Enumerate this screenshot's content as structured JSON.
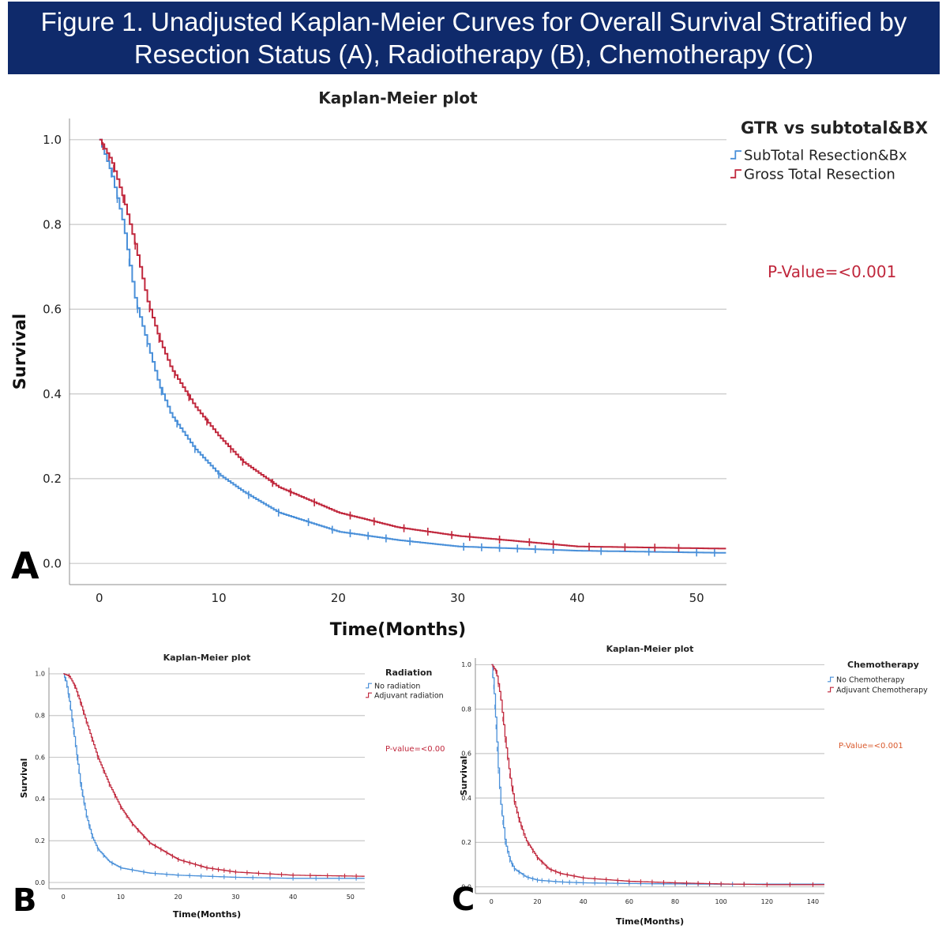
{
  "header": {
    "line1": "Figure 1. Unadjusted Kaplan-Meier Curves for Overall Survival Stratified by",
    "line2": "Resection Status (A), Radiotherapy (B), Chemotherapy (C)",
    "background": "#0f2a6b"
  },
  "chart_data": [
    {
      "panel": "A",
      "type": "line",
      "title": "Kaplan-Meier plot",
      "xlabel": "Time(Months)",
      "ylabel": "Survival",
      "xlim": [
        -2.5,
        52.5
      ],
      "ylim": [
        -0.05,
        1.05
      ],
      "xticks": [
        0,
        10,
        20,
        30,
        40,
        50
      ],
      "yticks": [
        0.0,
        0.2,
        0.4,
        0.6,
        0.8,
        1.0
      ],
      "grid": "horizontal",
      "legend_title": "GTR vs subtotal&BX",
      "legend_position": "top-right",
      "annotation": "P-Value=<0.001",
      "annotation_color": "#c0273c",
      "series": [
        {
          "name": "SubTotal Resection&Bx",
          "color": "#4a90d9",
          "x": [
            0,
            1,
            2,
            3,
            4,
            5,
            6,
            8,
            10,
            12,
            15,
            20,
            25,
            30,
            40,
            52
          ],
          "y": [
            1.0,
            0.92,
            0.8,
            0.62,
            0.52,
            0.42,
            0.35,
            0.27,
            0.21,
            0.17,
            0.12,
            0.075,
            0.055,
            0.04,
            0.03,
            0.025
          ],
          "censor_x": [
            1,
            1.5,
            2.5,
            3.2,
            4,
            5.2,
            6.5,
            8,
            10,
            12.5,
            15,
            17.5,
            19.5,
            21,
            22.5,
            24,
            26,
            30.5,
            32,
            33.5,
            35,
            36.5,
            38,
            42,
            46,
            50,
            51.5
          ]
        },
        {
          "name": "Gross Total Resection",
          "color": "#c0273c",
          "x": [
            0,
            1,
            2,
            3,
            4,
            5,
            6,
            8,
            10,
            12,
            15,
            20,
            25,
            30,
            40,
            52
          ],
          "y": [
            1.0,
            0.95,
            0.86,
            0.75,
            0.62,
            0.53,
            0.46,
            0.37,
            0.3,
            0.24,
            0.18,
            0.12,
            0.085,
            0.065,
            0.04,
            0.035
          ],
          "censor_x": [
            0.3,
            0.8,
            1.2,
            2,
            3,
            4.2,
            5,
            6.3,
            7.5,
            9,
            11,
            12,
            14.5,
            16,
            18,
            21,
            23,
            25.5,
            27.5,
            29.5,
            31,
            33.5,
            36,
            38,
            41,
            44,
            46.5,
            48.5
          ]
        }
      ]
    },
    {
      "panel": "B",
      "type": "line",
      "title": "Kaplan-Meier plot",
      "xlabel": "Time(Months)",
      "ylabel": "Survival",
      "xlim": [
        -2.5,
        52.5
      ],
      "ylim": [
        -0.03,
        1.03
      ],
      "xticks": [
        0,
        10,
        20,
        30,
        40,
        50
      ],
      "yticks": [
        0.0,
        0.2,
        0.4,
        0.6,
        0.8,
        1.0
      ],
      "grid": "horizontal",
      "legend_title": "Radiation",
      "legend_position": "top-right",
      "annotation": "P-value=<0.00",
      "annotation_color": "#c0273c",
      "series": [
        {
          "name": "No radiation",
          "color": "#4a90d9",
          "x": [
            0,
            0.5,
            1,
            2,
            3,
            4,
            5,
            6,
            8,
            10,
            15,
            20,
            30,
            40,
            52
          ],
          "y": [
            1.0,
            0.96,
            0.88,
            0.68,
            0.47,
            0.32,
            0.22,
            0.16,
            0.1,
            0.07,
            0.045,
            0.035,
            0.025,
            0.02,
            0.02
          ],
          "censor_x": [
            0.3,
            0.6,
            0.9,
            1.2,
            1.5,
            1.8,
            2.1,
            2.4,
            2.7,
            3,
            3.3,
            3.6,
            4,
            4.5,
            5,
            6,
            7,
            8.5,
            10,
            12,
            14,
            16,
            18,
            20,
            22,
            24,
            26,
            28,
            30,
            33,
            36,
            40,
            44,
            48,
            51
          ]
        },
        {
          "name": "Adjuvant radiation",
          "color": "#c0273c",
          "x": [
            0,
            1,
            2,
            3,
            4,
            6,
            8,
            10,
            12,
            15,
            20,
            25,
            30,
            40,
            52
          ],
          "y": [
            1.0,
            0.99,
            0.94,
            0.86,
            0.77,
            0.6,
            0.47,
            0.36,
            0.28,
            0.19,
            0.11,
            0.07,
            0.05,
            0.035,
            0.03
          ],
          "censor_x": [
            1,
            2,
            2.5,
            3,
            3.5,
            4,
            5,
            6,
            7,
            8,
            9,
            10,
            11,
            12,
            13,
            14,
            15,
            16,
            17,
            18,
            19,
            20,
            21,
            22,
            23,
            24,
            25,
            26,
            27,
            28,
            29,
            30,
            32,
            34,
            36,
            38,
            40,
            43,
            46,
            49,
            51
          ]
        }
      ]
    },
    {
      "panel": "C",
      "type": "line",
      "title": "Kaplan-Meier plot",
      "xlabel": "Time(Months)",
      "ylabel": "Survival",
      "xlim": [
        -7,
        145
      ],
      "ylim": [
        -0.03,
        1.03
      ],
      "xticks": [
        0,
        20,
        40,
        60,
        80,
        100,
        120,
        140
      ],
      "yticks": [
        0.0,
        0.2,
        0.4,
        0.6,
        0.8,
        1.0
      ],
      "grid": "horizontal",
      "legend_title": "Chemotherapy",
      "legend_position": "top-right",
      "annotation": "P-Value=<0.001",
      "annotation_color": "#d9582b",
      "series": [
        {
          "name": "No Chemotherapy",
          "color": "#4a90d9",
          "x": [
            0,
            1,
            2,
            3,
            4,
            6,
            8,
            10,
            15,
            20,
            30,
            40,
            60,
            80,
            100,
            110
          ],
          "y": [
            1.0,
            0.9,
            0.72,
            0.52,
            0.38,
            0.2,
            0.12,
            0.08,
            0.045,
            0.03,
            0.022,
            0.018,
            0.015,
            0.013,
            0.012,
            0.012
          ],
          "censor_x": [
            0.5,
            1,
            1.5,
            2,
            2.5,
            3,
            3.5,
            4,
            4.5,
            5,
            6,
            7,
            8,
            9,
            10,
            12,
            14,
            16,
            18,
            20,
            22,
            25,
            28,
            31,
            34,
            37,
            40,
            45,
            50,
            55,
            60,
            65,
            70,
            75,
            80,
            85,
            90,
            95,
            100,
            105,
            110
          ]
        },
        {
          "name": "Adjuvant Chemotherapy",
          "color": "#c0273c",
          "x": [
            0,
            2,
            4,
            6,
            8,
            10,
            12,
            15,
            20,
            25,
            30,
            40,
            60,
            80,
            100,
            120,
            140
          ],
          "y": [
            1.0,
            0.97,
            0.85,
            0.66,
            0.5,
            0.38,
            0.3,
            0.21,
            0.13,
            0.08,
            0.06,
            0.04,
            0.025,
            0.018,
            0.013,
            0.01,
            0.01
          ],
          "censor_x": [
            1,
            2,
            3,
            4,
            5,
            6,
            7,
            8,
            9,
            10,
            11,
            12,
            13,
            14,
            16,
            18,
            20,
            22,
            24,
            26,
            28,
            30,
            33,
            36,
            40,
            45,
            50,
            55,
            60,
            65,
            70,
            75,
            80,
            85,
            90,
            95,
            100,
            110,
            120,
            130,
            140
          ]
        }
      ]
    }
  ]
}
